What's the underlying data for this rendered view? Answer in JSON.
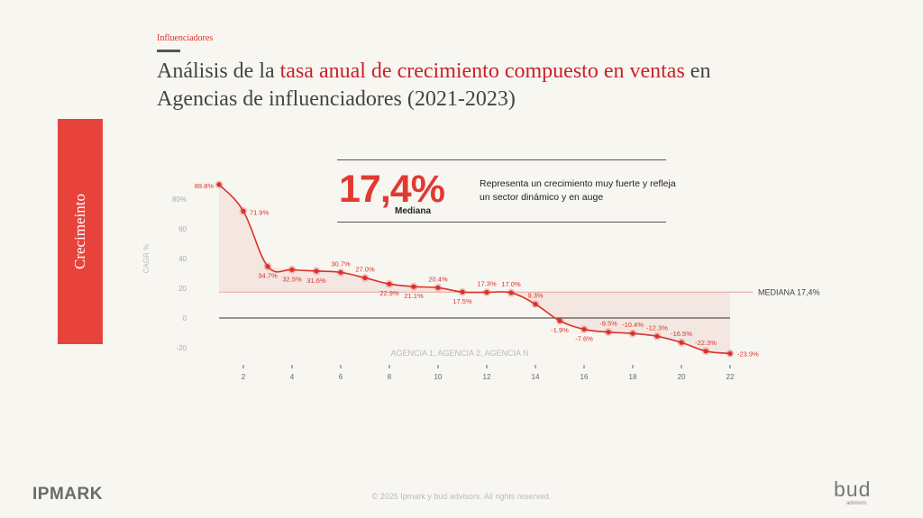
{
  "kicker": "Influenciadores",
  "title": {
    "part1": "Análisis de la ",
    "accent": "tasa anual de crecimiento compuesto en ventas",
    "part2": " en Agencias de influenciadores (2021-2023)"
  },
  "side_label": "Crecimeinto",
  "callout": {
    "value": "17,4%",
    "value_label": "Mediana",
    "text": "Representa un crecimiento muy fuerte y refleja un sector dinámico y en auge"
  },
  "footer": "© 2025 Ipmark y bud advisors. All rights reserved.",
  "logos": {
    "left": "IPMARK",
    "right": "bud",
    "right_sub": "advisors"
  },
  "colors": {
    "accent": "#e03a33",
    "title_accent": "#c9222a",
    "side_panel": "#e8433b",
    "line": "#d8322c"
  },
  "chart_data": {
    "type": "line",
    "ylabel": "CAGR %",
    "x_annotation": "AGENCIA 1, AGENCIA 2, AGENCIA N",
    "x": [
      1,
      2,
      3,
      4,
      5,
      6,
      7,
      8,
      9,
      10,
      11,
      12,
      13,
      14,
      15,
      16,
      17,
      18,
      19,
      20,
      21,
      22
    ],
    "y": [
      89.8,
      71.9,
      34.7,
      32.5,
      31.6,
      30.7,
      27.0,
      22.9,
      21.1,
      20.4,
      17.5,
      17.3,
      17.0,
      9.3,
      -1.9,
      -7.6,
      -9.5,
      -10.4,
      -12.3,
      -16.5,
      -22.3,
      -23.9
    ],
    "point_labels": [
      "89.8%",
      "71.9%",
      "34.7%",
      "32.5%",
      "31.6%",
      "30.7%",
      "27.0%",
      "22.9%",
      "21.1%",
      "20.4%",
      "17.5%",
      "17.3%",
      "17.0%",
      "9.3%",
      "-1.9%",
      "-7.6%",
      "-9.5%",
      "-10.4%",
      "-12.3%",
      "-16.5%",
      "-22.3%",
      "-23.9%"
    ],
    "x_ticks": [
      2,
      4,
      6,
      8,
      10,
      12,
      14,
      16,
      18,
      20,
      22
    ],
    "y_ticks": [
      -20,
      0,
      20,
      40,
      60,
      80
    ],
    "y_tick_labels": [
      "-20",
      "0",
      "20",
      "40",
      "60",
      "80%"
    ],
    "ylim": [
      -25,
      92
    ],
    "xlim": [
      1,
      22
    ],
    "median": {
      "value": 17.4,
      "label": "MEDIANA 17,4%"
    },
    "grid": false
  }
}
